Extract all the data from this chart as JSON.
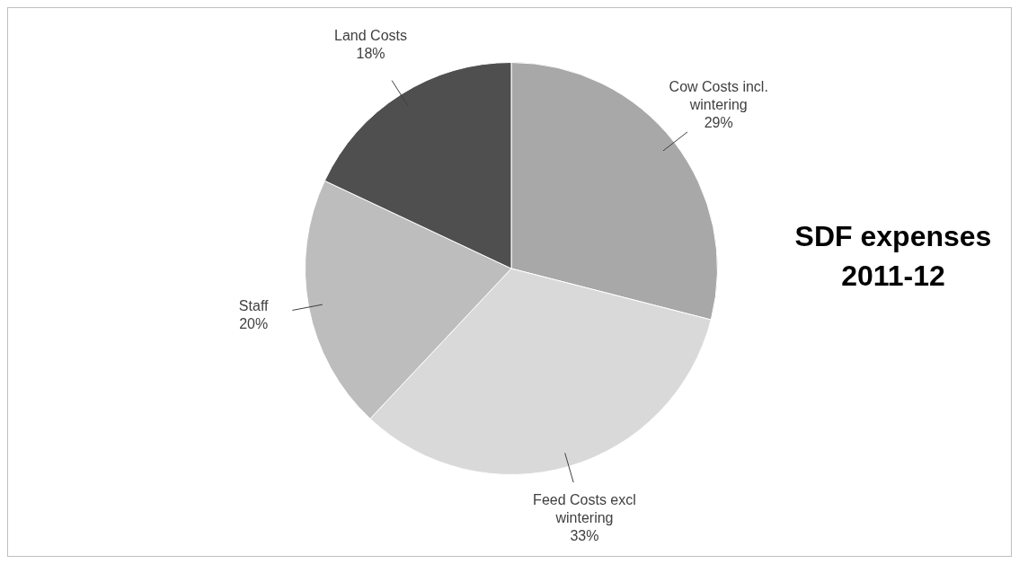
{
  "chart_data": {
    "type": "pie",
    "title": "SDF expenses 2011-12",
    "categories": [
      "Cow Costs incl. wintering",
      "Feed Costs excl wintering",
      "Staff",
      "Land Costs"
    ],
    "values": [
      29,
      33,
      20,
      18
    ],
    "value_labels": [
      "29%",
      "33%",
      "20%",
      "18%"
    ],
    "colors": [
      "#a8a8a8",
      "#d9d9d9",
      "#bdbdbd",
      "#4f4f4f"
    ],
    "legend": false
  }
}
